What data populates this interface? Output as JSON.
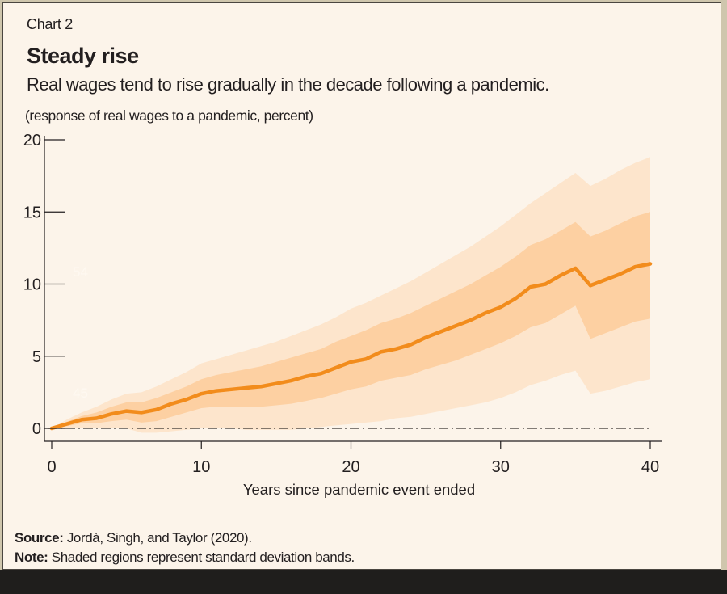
{
  "header": {
    "chart_number": "Chart 2",
    "title": "Steady rise",
    "subtitle": "Real wages tend to rise gradually in the decade following a pandemic.",
    "unit_label": "(response of real wages to a pandemic, percent)"
  },
  "footer": {
    "source_label": "Source:",
    "source_text": "Jordà, Singh, and Taylor (2020).",
    "note_label": "Note:",
    "note_text": "Shaded regions represent standard deviation bands."
  },
  "watermarks": [
    "54",
    "45"
  ],
  "colors": {
    "background": "#fcf4ea",
    "line": "#f28c1c",
    "inner_band": "#fdd0a2",
    "outer_band": "#fde5cc",
    "axis": "#231f20"
  },
  "chart_data": {
    "type": "line",
    "title": "Steady rise",
    "subtitle": "Real wages tend to rise gradually in the decade following a pandemic.",
    "xlabel": "Years since pandemic event ended",
    "ylabel": "(response of real wages to a pandemic, percent)",
    "xlim": [
      0,
      40
    ],
    "ylim": [
      0,
      20
    ],
    "xticks": [
      0,
      10,
      20,
      30,
      40
    ],
    "yticks": [
      0,
      5,
      10,
      15,
      20
    ],
    "zero_line": "dash-dot",
    "grid": false,
    "legend": "none",
    "x": [
      0,
      1,
      2,
      3,
      4,
      5,
      6,
      7,
      8,
      9,
      10,
      11,
      12,
      13,
      14,
      15,
      16,
      17,
      18,
      19,
      20,
      21,
      22,
      23,
      24,
      25,
      26,
      27,
      28,
      29,
      30,
      31,
      32,
      33,
      34,
      35,
      36,
      37,
      38,
      39,
      40
    ],
    "series": [
      {
        "name": "Real wage response",
        "values": [
          0,
          0.3,
          0.6,
          0.7,
          1.0,
          1.2,
          1.1,
          1.3,
          1.7,
          2.0,
          2.4,
          2.6,
          2.7,
          2.8,
          2.9,
          3.1,
          3.3,
          3.6,
          3.8,
          4.2,
          4.6,
          4.8,
          5.3,
          5.5,
          5.8,
          6.3,
          6.7,
          7.1,
          7.5,
          8.0,
          8.4,
          9.0,
          9.8,
          10.0,
          10.6,
          11.1,
          9.9,
          10.3,
          10.7,
          11.2,
          11.4
        ]
      }
    ],
    "bands": [
      {
        "name": "Outer standard deviation band",
        "upper": [
          0,
          0.6,
          1.1,
          1.5,
          2.0,
          2.4,
          2.5,
          2.9,
          3.4,
          3.9,
          4.5,
          4.8,
          5.1,
          5.4,
          5.7,
          6.0,
          6.4,
          6.8,
          7.2,
          7.7,
          8.3,
          8.7,
          9.2,
          9.7,
          10.2,
          10.8,
          11.4,
          12.0,
          12.6,
          13.3,
          14.0,
          14.8,
          15.6,
          16.3,
          17.0,
          17.7,
          16.8,
          17.3,
          17.9,
          18.4,
          18.8
        ],
        "lower": [
          0,
          0.0,
          0.0,
          0.0,
          0.0,
          0.0,
          -0.3,
          -0.3,
          -0.2,
          -0.1,
          0.0,
          0.0,
          0.0,
          -0.1,
          -0.1,
          -0.1,
          -0.1,
          0.0,
          0.1,
          0.2,
          0.3,
          0.4,
          0.5,
          0.7,
          0.8,
          1.0,
          1.2,
          1.4,
          1.6,
          1.8,
          2.1,
          2.5,
          3.0,
          3.3,
          3.7,
          4.0,
          2.4,
          2.6,
          2.9,
          3.2,
          3.4
        ]
      },
      {
        "name": "Inner standard deviation band",
        "upper": [
          0,
          0.45,
          0.85,
          1.1,
          1.5,
          1.8,
          1.8,
          2.1,
          2.5,
          2.9,
          3.4,
          3.7,
          3.9,
          4.1,
          4.3,
          4.6,
          4.9,
          5.2,
          5.5,
          6.0,
          6.4,
          6.8,
          7.3,
          7.6,
          8.0,
          8.5,
          9.0,
          9.5,
          10.0,
          10.6,
          11.2,
          11.9,
          12.7,
          13.1,
          13.7,
          14.3,
          13.3,
          13.7,
          14.2,
          14.7,
          15.0
        ],
        "lower": [
          0,
          0.15,
          0.35,
          0.35,
          0.5,
          0.6,
          0.4,
          0.5,
          0.8,
          1.1,
          1.4,
          1.5,
          1.5,
          1.5,
          1.5,
          1.6,
          1.7,
          1.9,
          2.1,
          2.4,
          2.7,
          2.9,
          3.3,
          3.5,
          3.7,
          4.1,
          4.4,
          4.7,
          5.1,
          5.5,
          5.9,
          6.4,
          7.0,
          7.3,
          7.9,
          8.5,
          6.2,
          6.6,
          7.0,
          7.4,
          7.6
        ]
      }
    ]
  }
}
